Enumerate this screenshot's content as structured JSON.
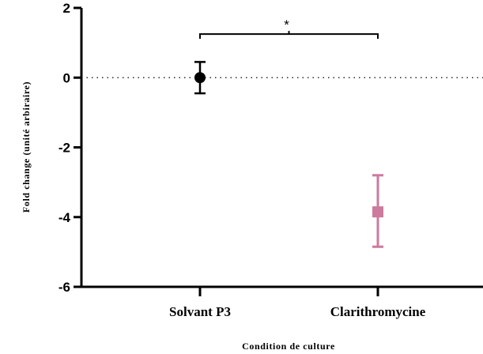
{
  "chart_data": {
    "type": "scatter",
    "xlabel": "Condition de culture",
    "ylabel": "Fold change (unité arbiraire)",
    "ylim": [
      -6,
      2
    ],
    "yticks": [
      -6,
      -4,
      -2,
      0,
      2
    ],
    "ytick_labels": [
      "-6",
      "-4",
      "-2",
      "0",
      "2"
    ],
    "categories": [
      "Solvant P3",
      "Clarithromycine"
    ],
    "reference_line": 0,
    "grid": false,
    "series": [
      {
        "category": "Solvant P3",
        "mean": 0.0,
        "err_low": -0.45,
        "err_high": 0.45,
        "marker": "circle",
        "color": "#000000"
      },
      {
        "category": "Clarithromycine",
        "mean": -3.85,
        "err_low": -4.85,
        "err_high": -2.8,
        "marker": "square",
        "color": "#cc7a9e"
      }
    ],
    "significance": {
      "from": "Solvant P3",
      "to": "Clarithromycine",
      "y": 1.25,
      "label": "*"
    }
  }
}
